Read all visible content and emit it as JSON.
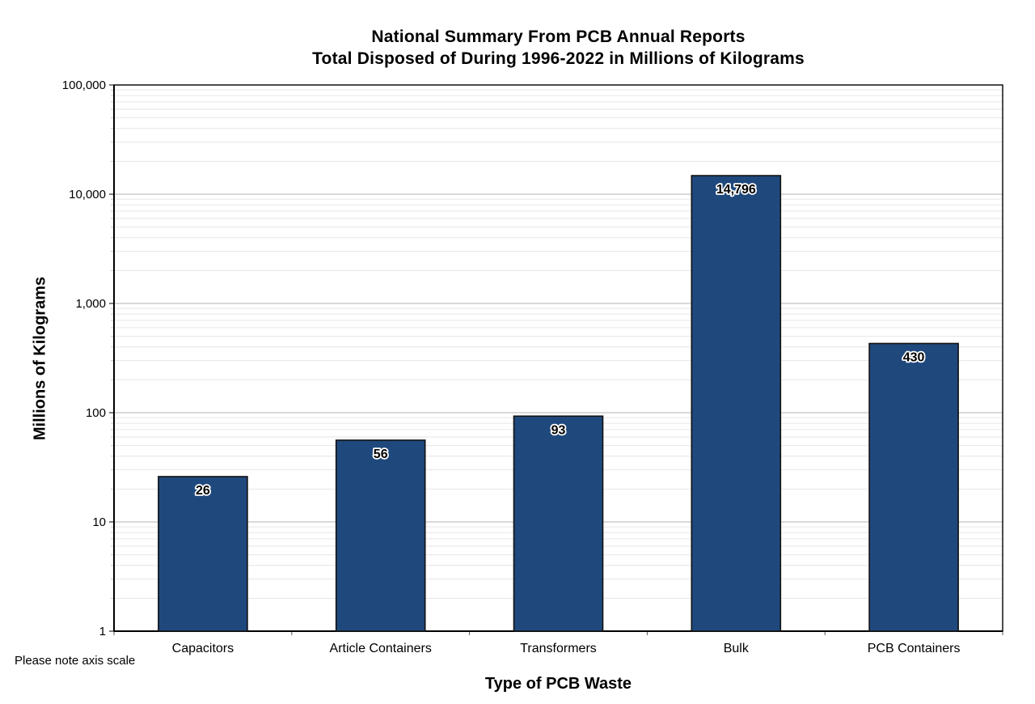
{
  "page": {
    "background": "#ffffff"
  },
  "chart_data": {
    "type": "bar",
    "title": "National Summary From PCB Annual Reports",
    "subtitle": "Total Disposed of During 1996-2022 in Millions of Kilograms",
    "xlabel": "Type of PCB Waste",
    "ylabel": "Millions of Kilograms",
    "note": "Please note axis scale",
    "categories": [
      "Capacitors",
      "Article Containers",
      "Transformers",
      "Bulk",
      "PCB Containers"
    ],
    "values": [
      26,
      56,
      93,
      14796,
      430
    ],
    "value_labels": [
      "26",
      "56",
      "93",
      "14,796",
      "430"
    ],
    "y_axis": {
      "scale": "log10",
      "min": 1,
      "max": 100000,
      "tick_labels": [
        "1",
        "10",
        "100",
        "1,000",
        "10,000",
        "100,000"
      ]
    },
    "grid": {
      "major": true,
      "minor": true
    },
    "legend": "none",
    "colors": {
      "bar_fill": "#1F497D",
      "bar_border": "#111111",
      "grid_major": "#b3b3b3",
      "grid_minor": "#e6e6e6",
      "axis": "#000000",
      "tick_minor": "#c9c9c9",
      "tick_x": "#595959",
      "text": "#000000",
      "label_outline": "#ffffff"
    }
  }
}
